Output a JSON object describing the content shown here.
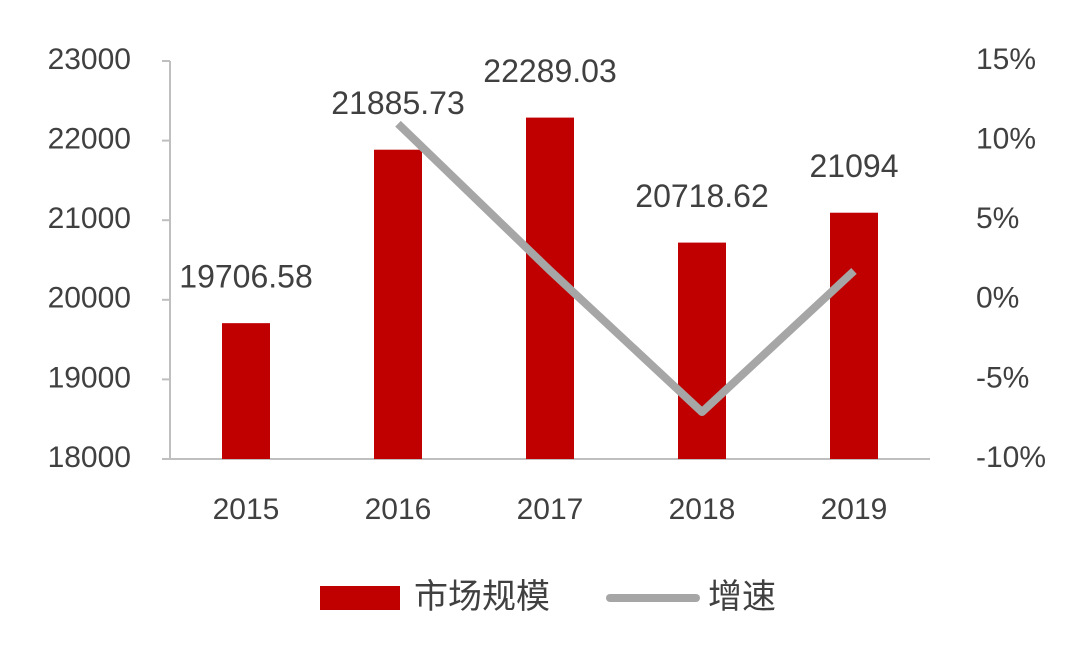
{
  "chart_data": {
    "type": "bar",
    "categories": [
      "2015",
      "2016",
      "2017",
      "2018",
      "2019"
    ],
    "series": [
      {
        "name": "市场规模",
        "color": "#c00000",
        "values": [
          19706.58,
          21885.73,
          22289.03,
          20718.62,
          21094
        ]
      },
      {
        "name": "增速",
        "type": "line",
        "axis": "y2",
        "color": "#a6a6a6",
        "values": [
          null,
          11.06,
          1.84,
          -7.05,
          1.81
        ]
      }
    ],
    "ylim": [
      18000,
      23000
    ],
    "yticks": [
      18000,
      19000,
      20000,
      21000,
      22000,
      23000
    ],
    "y2lim": [
      -10,
      15
    ],
    "y2ticks": [
      {
        "value": -10,
        "label": "-10%"
      },
      {
        "value": -5,
        "label": "-5%"
      },
      {
        "value": 0,
        "label": "0%"
      },
      {
        "value": 5,
        "label": "5%"
      },
      {
        "value": 10,
        "label": "10%"
      },
      {
        "value": 15,
        "label": "15%"
      }
    ],
    "legend": "bottom"
  }
}
